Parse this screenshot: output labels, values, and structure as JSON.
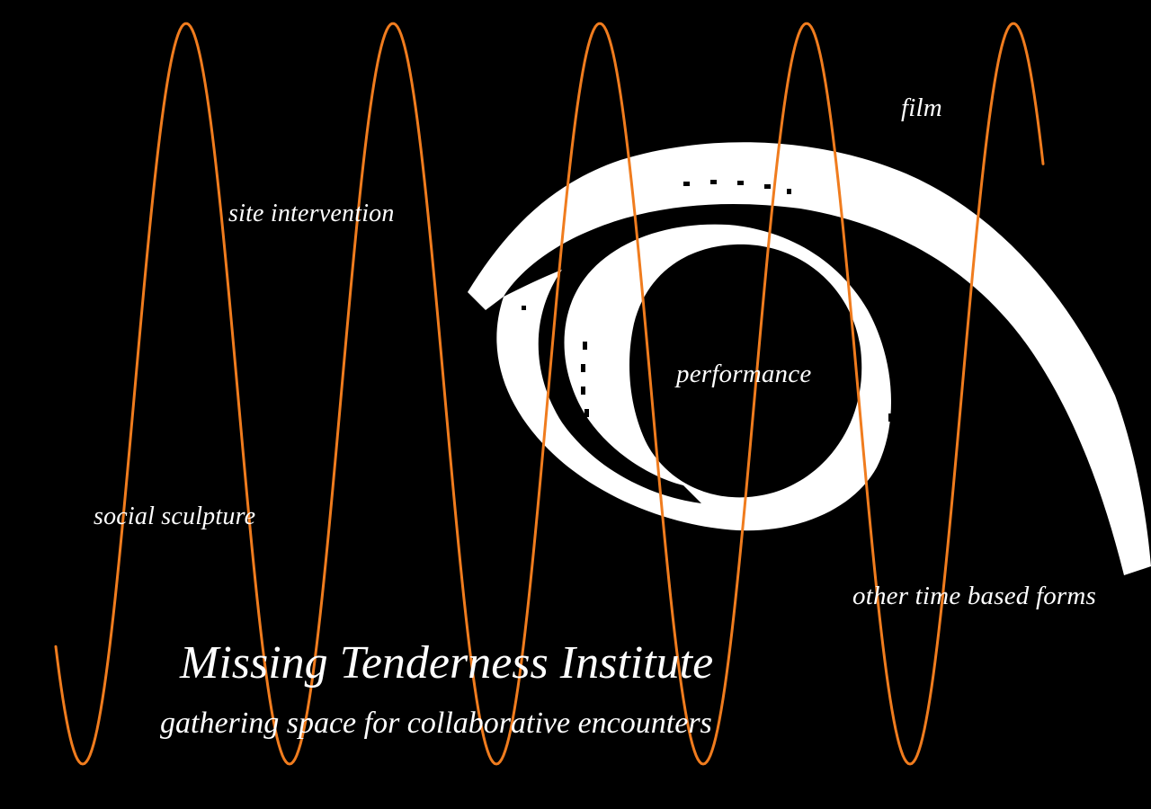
{
  "site": {
    "title": "Missing Tenderness Institute",
    "tagline": "gathering space for collaborative encounters"
  },
  "labels": {
    "film": "film",
    "site_intervention": "site intervention",
    "performance": "performance",
    "social_sculpture": "social sculpture",
    "other_time_based_forms": "other time based forms"
  },
  "colors": {
    "background": "#000000",
    "wave": "#f07c1e",
    "swirl": "#ffffff",
    "text": "#ffffff"
  },
  "icons": {
    "wave": "sine-wave-graphic",
    "swirl": "film-reel-swirl-graphic"
  }
}
